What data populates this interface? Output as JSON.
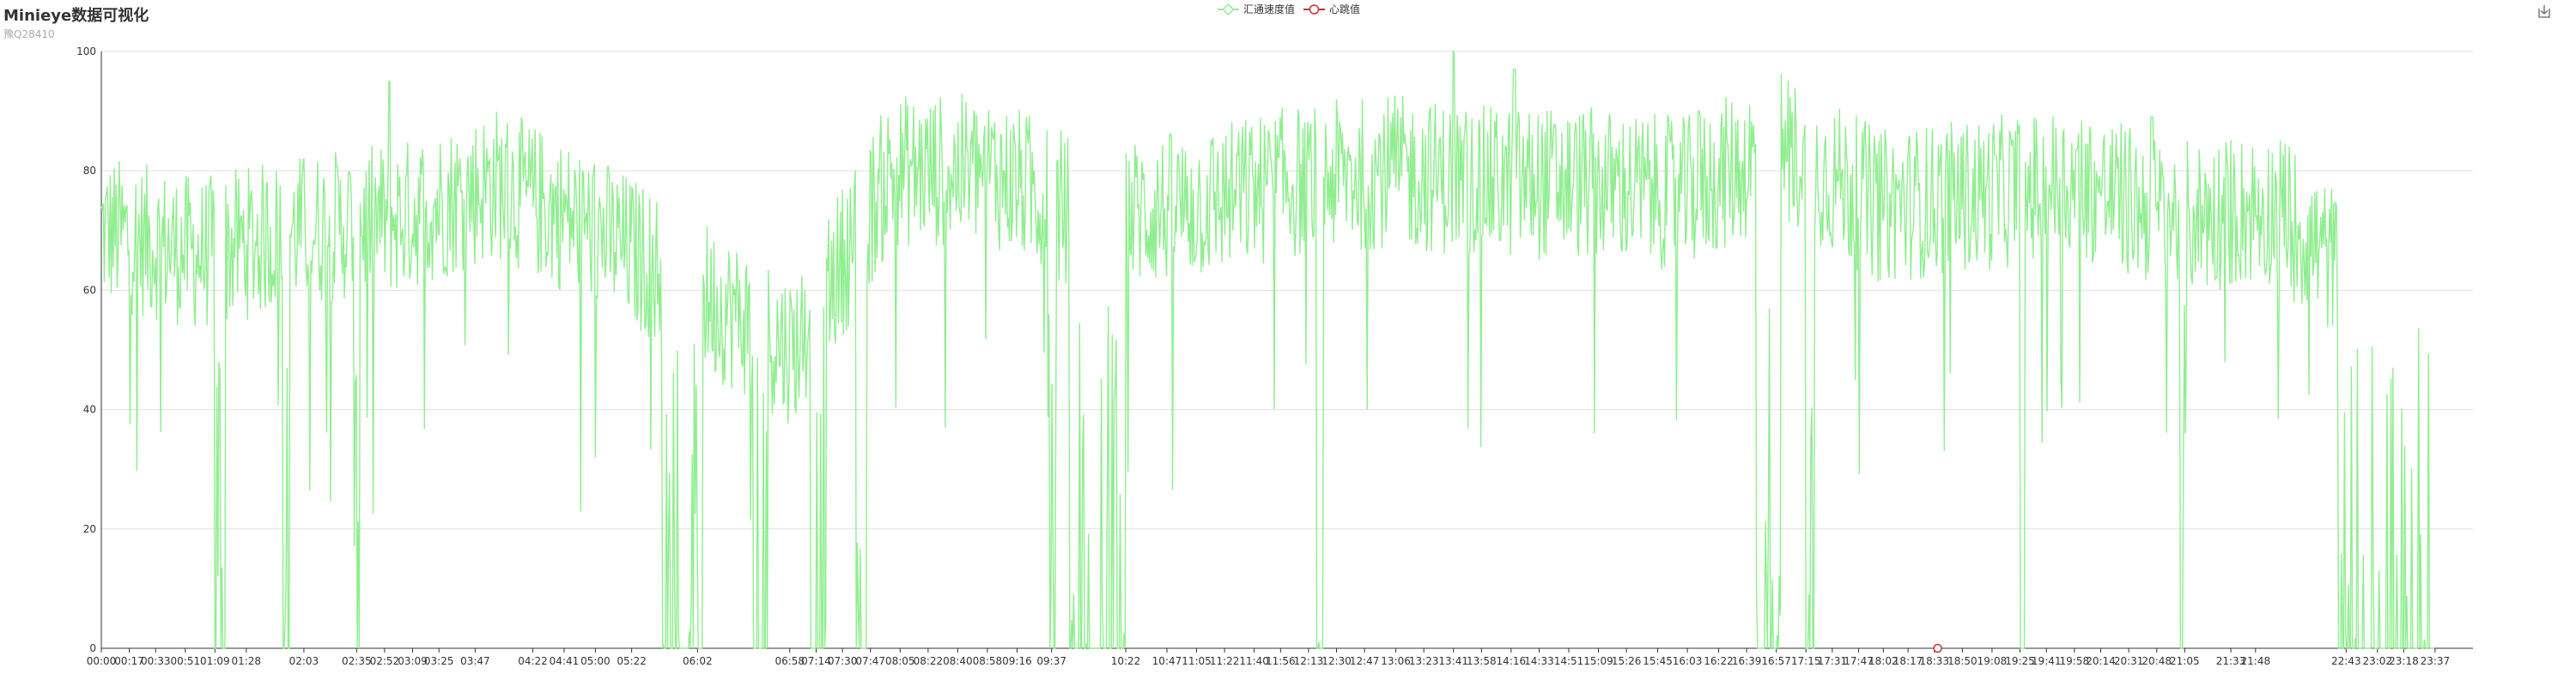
{
  "chart_data": {
    "type": "line",
    "title": "Minieye数据可视化",
    "subtitle": "豫Q28410",
    "legend": [
      "汇通速度值",
      "心跳值"
    ],
    "legend_placement": "top-center",
    "series": [
      {
        "name": "汇通速度值",
        "color": "#90ee90",
        "hourly_levels": [
          70,
          66,
          70,
          72,
          78,
          70,
          60,
          50,
          80,
          80,
          72,
          74,
          78,
          80,
          78,
          78,
          76,
          84,
          74,
          76,
          78,
          72,
          74,
          58
        ],
        "dropouts": [
          [
            "01:09",
            "01:15",
            0
          ],
          [
            "01:50",
            "01:54",
            0
          ],
          [
            "02:33",
            "02:37",
            0
          ],
          [
            "05:40",
            "06:05",
            0
          ],
          [
            "06:35",
            "06:45",
            0
          ],
          [
            "07:10",
            "07:20",
            0
          ],
          [
            "07:38",
            "07:45",
            0
          ],
          [
            "09:35",
            "09:40",
            0
          ],
          [
            "09:48",
            "10:22",
            0
          ],
          [
            "12:18",
            "12:22",
            0
          ],
          [
            "16:45",
            "17:00",
            0
          ],
          [
            "17:15",
            "17:20",
            0
          ],
          [
            "19:25",
            "19:28",
            0
          ],
          [
            "21:02",
            "21:06",
            0
          ],
          [
            "22:38",
            "23:37",
            0
          ]
        ],
        "peaks": [
          [
            "02:55",
            95
          ],
          [
            "13:41",
            100
          ],
          [
            "14:18",
            97
          ],
          [
            "16:10",
            90
          ],
          [
            "20:45",
            89
          ]
        ]
      },
      {
        "name": "心跳值",
        "color": "#c23531",
        "points": [
          [
            "18:35",
            0
          ]
        ]
      }
    ],
    "x_ticks": [
      "00:00",
      "00:17",
      "00:33",
      "00:51",
      "01:09",
      "01:28",
      "02:03",
      "02:35",
      "02:52",
      "03:09",
      "03:25",
      "03:47",
      "04:22",
      "04:41",
      "05:00",
      "05:22",
      "06:02",
      "06:58",
      "07:14",
      "07:30",
      "07:47",
      "08:05",
      "08:22",
      "08:40",
      "08:58",
      "09:16",
      "09:37",
      "10:22",
      "10:47",
      "11:05",
      "11:22",
      "11:40",
      "11:56",
      "12:13",
      "12:30",
      "12:47",
      "13:06",
      "13:23",
      "13:41",
      "13:58",
      "14:16",
      "14:33",
      "14:51",
      "15:09",
      "15:26",
      "15:45",
      "16:03",
      "16:22",
      "16:39",
      "16:57",
      "17:15",
      "17:31",
      "17:47",
      "18:02",
      "18:17",
      "18:33",
      "18:50",
      "19:08",
      "19:25",
      "19:41",
      "19:58",
      "20:14",
      "20:31",
      "20:48",
      "21:05",
      "21:33",
      "21:48",
      "22:43",
      "23:02",
      "23:18",
      "23:37"
    ],
    "y_ticks": [
      "0",
      "20",
      "40",
      "60",
      "80",
      "100"
    ],
    "ylim": [
      0,
      100
    ],
    "grid": true,
    "xlabel": "",
    "ylabel": ""
  },
  "toolbox": {
    "icon": "save-as-image-icon"
  }
}
